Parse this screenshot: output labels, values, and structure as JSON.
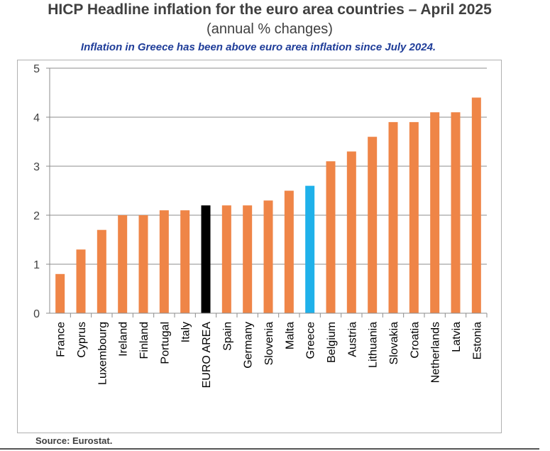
{
  "chart_data": {
    "type": "bar",
    "title": "HICP Headline inflation for the euro area countries – April 2025",
    "subtitle": "(annual % changes)",
    "annotation": "Inflation in Greece has been above euro area inflation since July 2024.",
    "xlabel": "",
    "ylabel": "",
    "ylim": [
      0,
      5
    ],
    "yticks": [
      0,
      1,
      2,
      3,
      4,
      5
    ],
    "grid": true,
    "categories": [
      "France",
      "Cyprus",
      "Luxembourg",
      "Ireland",
      "Finland",
      "Portugal",
      "Italy",
      "EURO AREA",
      "Spain",
      "Germany",
      "Slovenia",
      "Malta",
      "Greece",
      "Belgium",
      "Austria",
      "Lithuania",
      "Slovakia",
      "Croatia",
      "Netherlands",
      "Latvia",
      "Estonia"
    ],
    "values": [
      0.8,
      1.3,
      1.7,
      2.0,
      2.0,
      2.1,
      2.1,
      2.2,
      2.2,
      2.2,
      2.3,
      2.5,
      2.6,
      3.1,
      3.3,
      3.6,
      3.9,
      3.9,
      4.1,
      4.1,
      4.4
    ],
    "colors": {
      "default": "#ef8547",
      "highlights": {
        "EURO AREA": "#000000",
        "Greece": "#1fb1ea"
      }
    },
    "source": "Source: Eurostat."
  }
}
